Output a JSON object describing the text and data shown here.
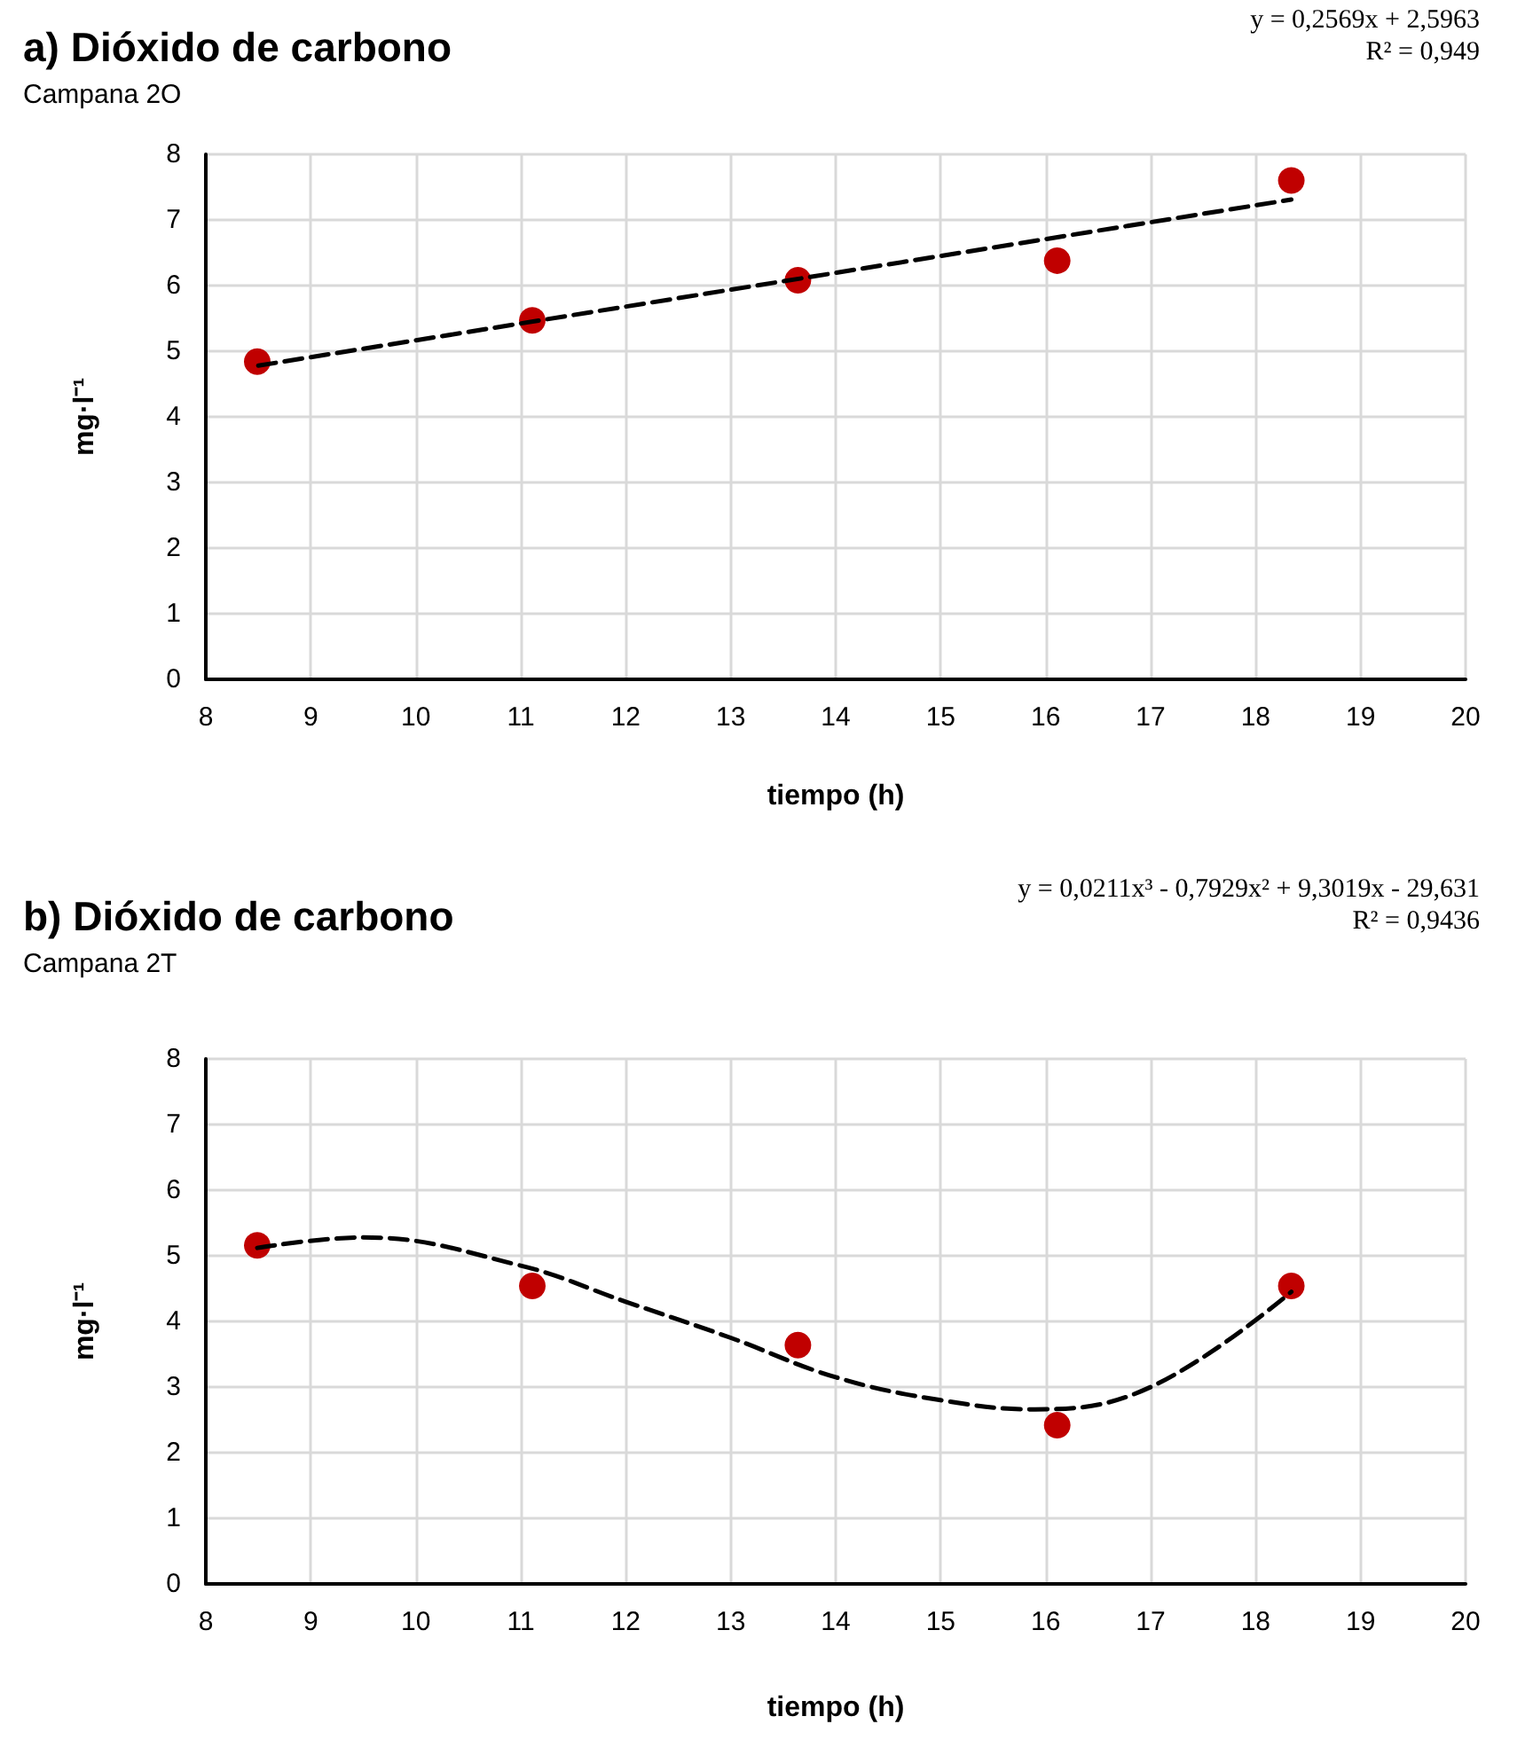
{
  "chart_data": [
    {
      "type": "scatter",
      "title": "a) Dióxido de carbono",
      "subtitle": "Campana 2O",
      "xlabel": "tiempo (h)",
      "ylabel": "mg·l⁻¹",
      "annotations": [
        "y = 0,2569x + 2,5963",
        "R² = 0,949"
      ],
      "series": [
        {
          "type": "scatter",
          "color": "#c00000",
          "marker": "circle",
          "x": [
            8.49,
            11.11,
            13.64,
            16.11,
            18.34
          ],
          "values": [
            4.84,
            5.47,
            6.08,
            6.38,
            7.6
          ]
        },
        {
          "type": "line",
          "color": "#000000",
          "marker": "none",
          "line_style": "dashed",
          "x": [
            8.5,
            18.34
          ],
          "values": [
            4.78,
            7.31
          ]
        }
      ],
      "xlim": [
        8,
        20
      ],
      "xticks": [
        8,
        9,
        10,
        11,
        12,
        13,
        14,
        15,
        16,
        17,
        18,
        19,
        20
      ],
      "ylim": [
        0,
        8
      ],
      "yticks": [
        0,
        1,
        2,
        3,
        4,
        5,
        6,
        7,
        8
      ],
      "grid": true
    },
    {
      "type": "scatter",
      "title": "b) Dióxido de carbono",
      "subtitle": "Campana 2T",
      "xlabel": "tiempo (h)",
      "ylabel": "mg·l⁻¹",
      "annotations": [
        "y = 0,0211x³ - 0,7929x² + 9,3019x - 29,631",
        "R² = 0,9436"
      ],
      "series": [
        {
          "type": "scatter",
          "color": "#c00000",
          "marker": "circle",
          "x": [
            8.49,
            11.11,
            13.64,
            16.11,
            18.34
          ],
          "values": [
            5.16,
            4.54,
            3.64,
            2.42,
            4.54
          ]
        },
        {
          "type": "line",
          "color": "#000000",
          "marker": "none",
          "line_style": "dashed",
          "x": [
            8.49,
            9.5,
            11,
            12,
            13,
            14,
            15,
            15.9,
            17,
            18.34
          ],
          "values": [
            5.12,
            5.28,
            4.85,
            4.3,
            3.75,
            3.15,
            2.8,
            2.66,
            3.0,
            4.45
          ]
        }
      ],
      "xlim": [
        8,
        20
      ],
      "xticks": [
        8,
        9,
        10,
        11,
        12,
        13,
        14,
        15,
        16,
        17,
        18,
        19,
        20
      ],
      "ylim": [
        0,
        8
      ],
      "yticks": [
        0,
        1,
        2,
        3,
        4,
        5,
        6,
        7,
        8
      ],
      "grid": true
    }
  ]
}
